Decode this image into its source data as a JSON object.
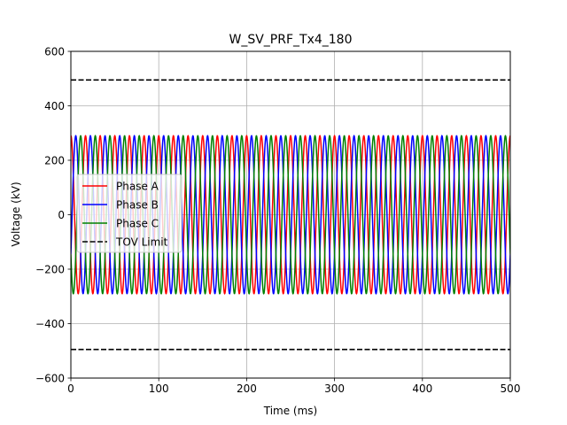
{
  "chart_data": {
    "type": "line",
    "title": "W_SV_PRF_Tx4_180",
    "xlabel": "Time (ms)",
    "ylabel": "Voltage (kV)",
    "xlim": [
      0,
      500
    ],
    "ylim": [
      -600,
      600
    ],
    "xticks": [
      0,
      100,
      200,
      300,
      400,
      500
    ],
    "yticks": [
      -600,
      -400,
      -200,
      0,
      200,
      400,
      600
    ],
    "xtick_labels": [
      "0",
      "100",
      "200",
      "300",
      "400",
      "500"
    ],
    "ytick_labels": [
      "−600",
      "−400",
      "−200",
      "0",
      "200",
      "400",
      "600"
    ],
    "grid": true,
    "legend_position": "center-left",
    "series": [
      {
        "name": "Phase A",
        "color": "#ff0000",
        "style": "solid",
        "amplitude_kv": 290,
        "frequency_hz": 60,
        "phase_deg": 90
      },
      {
        "name": "Phase B",
        "color": "#0000ff",
        "style": "solid",
        "amplitude_kv": 290,
        "frequency_hz": 60,
        "phase_deg": -30
      },
      {
        "name": "Phase C",
        "color": "#008000",
        "style": "solid",
        "amplitude_kv": 290,
        "frequency_hz": 60,
        "phase_deg": 210
      },
      {
        "name": "TOV Limit",
        "color": "#000000",
        "style": "dashed",
        "values_kv": [
          495,
          -495
        ]
      }
    ]
  }
}
